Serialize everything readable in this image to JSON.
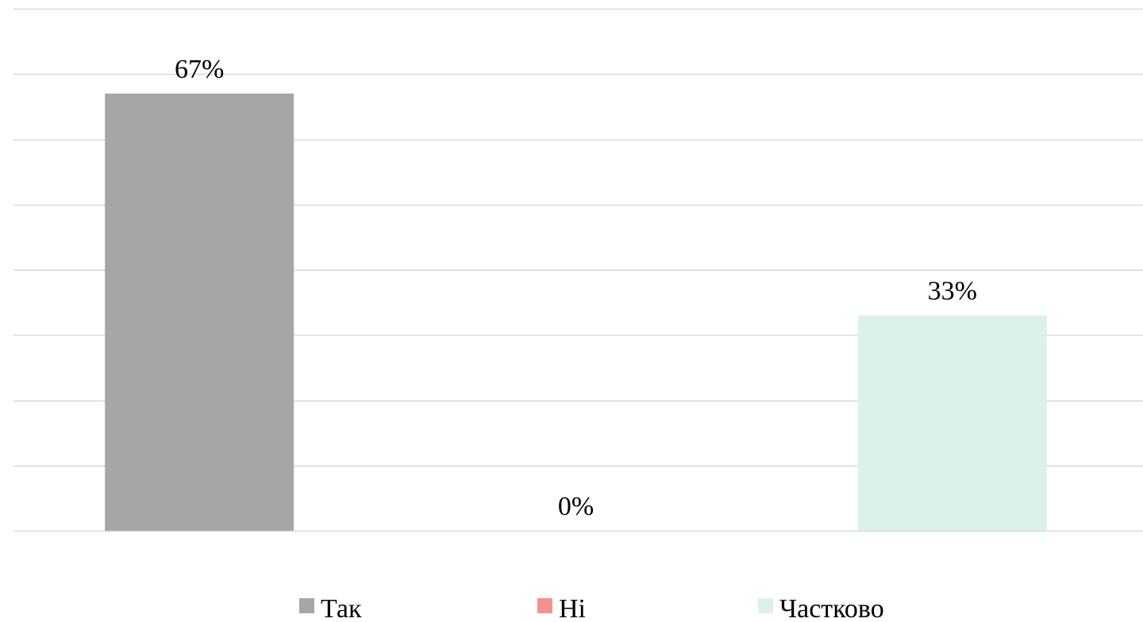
{
  "chart_data": {
    "type": "bar",
    "categories": [
      "Так",
      "Ні",
      "Частково"
    ],
    "values": [
      67,
      0,
      33
    ],
    "value_labels": [
      "67%",
      "0%",
      "33%"
    ],
    "colors": [
      "#a6a6a6",
      "#f4938e",
      "#dbf1ea"
    ],
    "ylim": [
      0,
      80
    ],
    "grid": true,
    "legend": {
      "position": "bottom",
      "entries": [
        "Так",
        "Ні",
        "Частково"
      ]
    },
    "title": "",
    "xlabel": "",
    "ylabel": ""
  }
}
